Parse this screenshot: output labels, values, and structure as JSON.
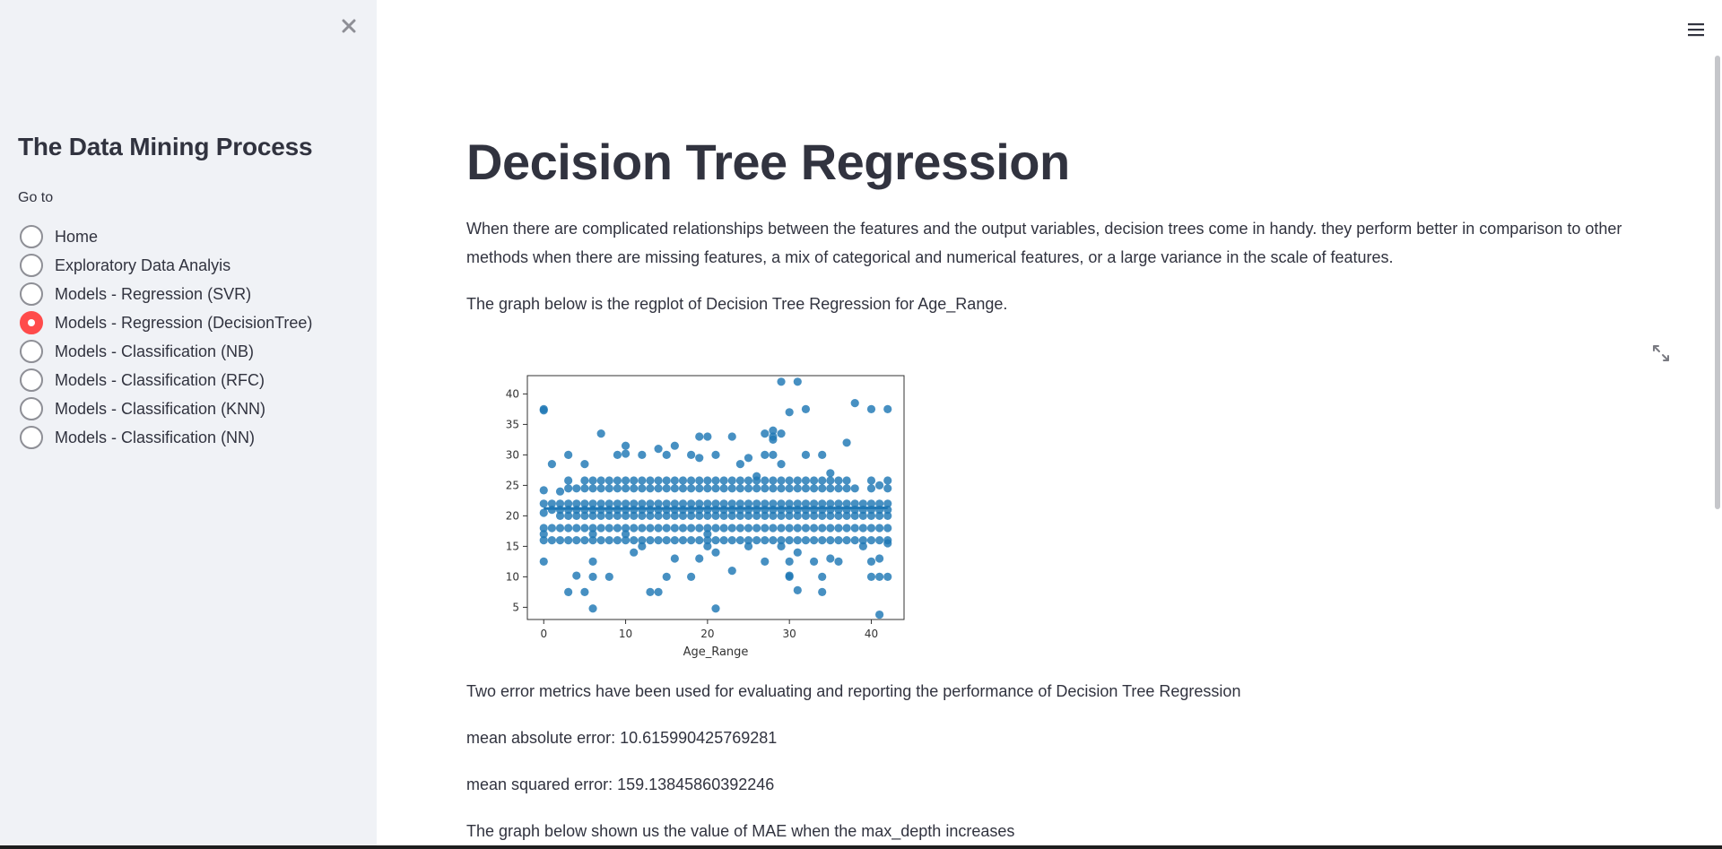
{
  "sidebar": {
    "title": "The Data Mining Process",
    "goto_label": "Go to",
    "items": [
      {
        "label": "Home",
        "selected": false
      },
      {
        "label": "Exploratory Data Analyis",
        "selected": false
      },
      {
        "label": "Models - Regression (SVR)",
        "selected": false
      },
      {
        "label": "Models - Regression (DecisionTree)",
        "selected": true
      },
      {
        "label": "Models - Classification (NB)",
        "selected": false
      },
      {
        "label": "Models - Classification (RFC)",
        "selected": false
      },
      {
        "label": "Models - Classification (KNN)",
        "selected": false
      },
      {
        "label": "Models - Classification (NN)",
        "selected": false
      }
    ],
    "accent_color": "#ff4b4b",
    "close_icon": "close-icon"
  },
  "main": {
    "title": "Decision Tree Regression",
    "intro": "When there are complicated relationships between the features and the output variables, decision trees come in handy. they perform better in comparison to other methods when there are missing features, a mix of categorical and numerical features, or a large variance in the scale of features.",
    "graph_intro": "The graph below is the regplot of Decision Tree Regression for Age_Range.",
    "metrics_intro": "Two error metrics have been used for evaluating and reporting the performance of Decision Tree Regression",
    "mae": "mean absolute error: 10.615990425769281",
    "mse": "mean squared error: 159.13845860392246",
    "mae_graph_intro": "The graph below shown us the value of MAE when the max_depth increases",
    "menu_icon": "hamburger-menu-icon",
    "expand_icon": "fullscreen-expand-icon"
  },
  "chart_data": {
    "type": "scatter",
    "xlabel": "Age_Range",
    "ylabel": "",
    "xlim": [
      -2,
      44
    ],
    "ylim": [
      3,
      43
    ],
    "xticks": [
      0,
      10,
      20,
      30,
      40
    ],
    "yticks": [
      5,
      10,
      15,
      20,
      25,
      30,
      35,
      40
    ],
    "grid": false,
    "point_color": "#1f77b4",
    "regression_line": {
      "x": [
        0,
        42
      ],
      "y": [
        21.2,
        21.3
      ]
    },
    "points": [
      [
        0,
        37.5
      ],
      [
        0,
        37.3
      ],
      [
        0,
        24.2
      ],
      [
        0,
        22
      ],
      [
        0,
        20.5
      ],
      [
        0,
        18
      ],
      [
        0,
        17
      ],
      [
        0,
        16
      ],
      [
        0,
        12.5
      ],
      [
        1,
        28.5
      ],
      [
        1,
        22
      ],
      [
        1,
        21
      ],
      [
        1,
        18
      ],
      [
        1,
        16
      ],
      [
        2,
        24
      ],
      [
        2,
        22
      ],
      [
        2,
        21
      ],
      [
        2,
        20
      ],
      [
        2,
        18
      ],
      [
        2,
        16
      ],
      [
        3,
        30
      ],
      [
        3,
        25.8
      ],
      [
        3,
        24.5
      ],
      [
        3,
        22
      ],
      [
        3,
        21
      ],
      [
        3,
        20
      ],
      [
        3,
        18
      ],
      [
        3,
        16
      ],
      [
        3,
        7.5
      ],
      [
        4,
        24.5
      ],
      [
        4,
        22
      ],
      [
        4,
        21
      ],
      [
        4,
        20
      ],
      [
        4,
        18
      ],
      [
        4,
        16
      ],
      [
        4,
        10.2
      ],
      [
        5,
        28.5
      ],
      [
        5,
        25.8
      ],
      [
        5,
        24.5
      ],
      [
        5,
        22
      ],
      [
        5,
        21
      ],
      [
        5,
        20
      ],
      [
        5,
        18
      ],
      [
        5,
        16
      ],
      [
        5,
        7.5
      ],
      [
        6,
        25.8
      ],
      [
        6,
        24.5
      ],
      [
        6,
        22
      ],
      [
        6,
        21
      ],
      [
        6,
        20
      ],
      [
        6,
        18
      ],
      [
        6,
        17
      ],
      [
        6,
        16
      ],
      [
        6,
        12.5
      ],
      [
        6,
        10
      ],
      [
        6,
        4.8
      ],
      [
        7,
        33.5
      ],
      [
        7,
        25.8
      ],
      [
        7,
        24.5
      ],
      [
        7,
        22
      ],
      [
        7,
        21
      ],
      [
        7,
        20
      ],
      [
        7,
        18
      ],
      [
        7,
        16
      ],
      [
        8,
        25.8
      ],
      [
        8,
        24.5
      ],
      [
        8,
        22
      ],
      [
        8,
        21
      ],
      [
        8,
        20
      ],
      [
        8,
        18
      ],
      [
        8,
        16
      ],
      [
        8,
        10
      ],
      [
        9,
        30
      ],
      [
        9,
        25.8
      ],
      [
        9,
        24.5
      ],
      [
        9,
        22
      ],
      [
        9,
        21
      ],
      [
        9,
        20
      ],
      [
        9,
        18
      ],
      [
        9,
        16
      ],
      [
        10,
        31.5
      ],
      [
        10,
        30.2
      ],
      [
        10,
        25.8
      ],
      [
        10,
        24.5
      ],
      [
        10,
        22
      ],
      [
        10,
        21
      ],
      [
        10,
        20
      ],
      [
        10,
        18
      ],
      [
        10,
        17
      ],
      [
        10,
        16
      ],
      [
        11,
        25.8
      ],
      [
        11,
        24.5
      ],
      [
        11,
        22
      ],
      [
        11,
        21
      ],
      [
        11,
        20
      ],
      [
        11,
        18
      ],
      [
        11,
        16
      ],
      [
        11,
        14
      ],
      [
        12,
        30
      ],
      [
        12,
        25.8
      ],
      [
        12,
        24.5
      ],
      [
        12,
        22
      ],
      [
        12,
        21
      ],
      [
        12,
        20
      ],
      [
        12,
        18
      ],
      [
        12,
        16
      ],
      [
        12,
        15
      ],
      [
        13,
        25.8
      ],
      [
        13,
        24.5
      ],
      [
        13,
        22
      ],
      [
        13,
        21
      ],
      [
        13,
        20
      ],
      [
        13,
        18
      ],
      [
        13,
        16
      ],
      [
        13,
        7.5
      ],
      [
        14,
        31
      ],
      [
        14,
        25.8
      ],
      [
        14,
        24.5
      ],
      [
        14,
        22
      ],
      [
        14,
        21
      ],
      [
        14,
        20
      ],
      [
        14,
        18
      ],
      [
        14,
        16
      ],
      [
        14,
        7.5
      ],
      [
        15,
        30
      ],
      [
        15,
        25.8
      ],
      [
        15,
        24.5
      ],
      [
        15,
        22
      ],
      [
        15,
        21
      ],
      [
        15,
        20
      ],
      [
        15,
        18
      ],
      [
        15,
        16
      ],
      [
        15,
        10
      ],
      [
        16,
        31.5
      ],
      [
        16,
        25.8
      ],
      [
        16,
        24.5
      ],
      [
        16,
        22
      ],
      [
        16,
        21
      ],
      [
        16,
        20
      ],
      [
        16,
        18
      ],
      [
        16,
        16
      ],
      [
        16,
        13
      ],
      [
        17,
        25.8
      ],
      [
        17,
        24.5
      ],
      [
        17,
        22
      ],
      [
        17,
        21
      ],
      [
        17,
        20
      ],
      [
        17,
        18
      ],
      [
        17,
        16
      ],
      [
        18,
        30
      ],
      [
        18,
        25.8
      ],
      [
        18,
        24.5
      ],
      [
        18,
        22
      ],
      [
        18,
        21
      ],
      [
        18,
        20
      ],
      [
        18,
        18
      ],
      [
        18,
        16
      ],
      [
        18,
        10
      ],
      [
        19,
        33
      ],
      [
        19,
        29.5
      ],
      [
        19,
        25.8
      ],
      [
        19,
        24.5
      ],
      [
        19,
        22
      ],
      [
        19,
        21
      ],
      [
        19,
        20
      ],
      [
        19,
        18
      ],
      [
        19,
        16
      ],
      [
        19,
        13
      ],
      [
        20,
        33
      ],
      [
        20,
        25.8
      ],
      [
        20,
        24.5
      ],
      [
        20,
        22
      ],
      [
        20,
        21
      ],
      [
        20,
        20
      ],
      [
        20,
        18
      ],
      [
        20,
        17
      ],
      [
        20,
        16
      ],
      [
        20,
        15
      ],
      [
        21,
        30
      ],
      [
        21,
        25.8
      ],
      [
        21,
        24.5
      ],
      [
        21,
        22
      ],
      [
        21,
        21
      ],
      [
        21,
        20
      ],
      [
        21,
        18
      ],
      [
        21,
        16
      ],
      [
        21,
        14
      ],
      [
        21,
        4.8
      ],
      [
        22,
        25.8
      ],
      [
        22,
        24.5
      ],
      [
        22,
        22
      ],
      [
        22,
        21
      ],
      [
        22,
        20
      ],
      [
        22,
        18
      ],
      [
        22,
        16
      ],
      [
        23,
        33
      ],
      [
        23,
        25.8
      ],
      [
        23,
        24.5
      ],
      [
        23,
        22
      ],
      [
        23,
        21
      ],
      [
        23,
        20
      ],
      [
        23,
        18
      ],
      [
        23,
        16
      ],
      [
        23,
        11
      ],
      [
        24,
        28.5
      ],
      [
        24,
        25.8
      ],
      [
        24,
        24.5
      ],
      [
        24,
        22
      ],
      [
        24,
        21
      ],
      [
        24,
        20
      ],
      [
        24,
        18
      ],
      [
        24,
        16
      ],
      [
        25,
        29.5
      ],
      [
        25,
        25.8
      ],
      [
        25,
        24.5
      ],
      [
        25,
        22
      ],
      [
        25,
        21
      ],
      [
        25,
        20
      ],
      [
        25,
        18
      ],
      [
        25,
        16
      ],
      [
        25,
        15
      ],
      [
        26,
        26.5
      ],
      [
        26,
        25.8
      ],
      [
        26,
        24.5
      ],
      [
        26,
        22
      ],
      [
        26,
        21
      ],
      [
        26,
        20
      ],
      [
        26,
        18
      ],
      [
        26,
        16
      ],
      [
        27,
        33.5
      ],
      [
        27,
        30
      ],
      [
        27,
        25.8
      ],
      [
        27,
        24.5
      ],
      [
        27,
        22
      ],
      [
        27,
        21
      ],
      [
        27,
        20
      ],
      [
        27,
        18
      ],
      [
        27,
        16
      ],
      [
        27,
        12.5
      ],
      [
        28,
        34
      ],
      [
        28,
        33
      ],
      [
        28,
        32.5
      ],
      [
        28,
        30
      ],
      [
        28,
        25.8
      ],
      [
        28,
        24.5
      ],
      [
        28,
        22
      ],
      [
        28,
        21
      ],
      [
        28,
        20
      ],
      [
        28,
        18
      ],
      [
        28,
        16
      ],
      [
        29,
        42
      ],
      [
        29,
        33.5
      ],
      [
        29,
        28.5
      ],
      [
        29,
        25.8
      ],
      [
        29,
        24.5
      ],
      [
        29,
        22
      ],
      [
        29,
        21
      ],
      [
        29,
        20
      ],
      [
        29,
        18
      ],
      [
        29,
        16
      ],
      [
        29,
        15
      ],
      [
        30,
        37
      ],
      [
        30,
        25.8
      ],
      [
        30,
        24.5
      ],
      [
        30,
        22
      ],
      [
        30,
        21
      ],
      [
        30,
        20
      ],
      [
        30,
        18
      ],
      [
        30,
        16
      ],
      [
        30,
        12.5
      ],
      [
        30,
        10.2
      ],
      [
        30,
        10
      ],
      [
        31,
        42
      ],
      [
        31,
        25.8
      ],
      [
        31,
        24.5
      ],
      [
        31,
        22
      ],
      [
        31,
        21
      ],
      [
        31,
        20
      ],
      [
        31,
        18
      ],
      [
        31,
        16
      ],
      [
        31,
        14
      ],
      [
        31,
        7.8
      ],
      [
        32,
        37.5
      ],
      [
        32,
        30
      ],
      [
        32,
        25.8
      ],
      [
        32,
        24.5
      ],
      [
        32,
        22
      ],
      [
        32,
        21
      ],
      [
        32,
        20
      ],
      [
        32,
        18
      ],
      [
        32,
        16
      ],
      [
        33,
        25.8
      ],
      [
        33,
        24.5
      ],
      [
        33,
        22
      ],
      [
        33,
        21
      ],
      [
        33,
        20
      ],
      [
        33,
        18
      ],
      [
        33,
        16
      ],
      [
        33,
        12.5
      ],
      [
        34,
        30
      ],
      [
        34,
        25.8
      ],
      [
        34,
        24.5
      ],
      [
        34,
        22
      ],
      [
        34,
        21
      ],
      [
        34,
        20
      ],
      [
        34,
        18
      ],
      [
        34,
        16
      ],
      [
        34,
        10
      ],
      [
        34,
        7.5
      ],
      [
        35,
        27
      ],
      [
        35,
        25.8
      ],
      [
        35,
        24.5
      ],
      [
        35,
        22
      ],
      [
        35,
        21
      ],
      [
        35,
        20
      ],
      [
        35,
        18
      ],
      [
        35,
        16
      ],
      [
        35,
        13
      ],
      [
        36,
        25.8
      ],
      [
        36,
        24.5
      ],
      [
        36,
        22
      ],
      [
        36,
        21
      ],
      [
        36,
        20
      ],
      [
        36,
        18
      ],
      [
        36,
        16
      ],
      [
        36,
        12.5
      ],
      [
        37,
        32
      ],
      [
        37,
        25.8
      ],
      [
        37,
        24.5
      ],
      [
        37,
        22
      ],
      [
        37,
        21
      ],
      [
        37,
        20
      ],
      [
        37,
        18
      ],
      [
        37,
        16
      ],
      [
        38,
        38.5
      ],
      [
        38,
        24.5
      ],
      [
        38,
        22
      ],
      [
        38,
        21
      ],
      [
        38,
        20
      ],
      [
        38,
        18
      ],
      [
        38,
        16
      ],
      [
        39,
        22
      ],
      [
        39,
        21
      ],
      [
        39,
        20
      ],
      [
        39,
        18
      ],
      [
        39,
        16
      ],
      [
        39,
        15
      ],
      [
        40,
        37.5
      ],
      [
        40,
        25.8
      ],
      [
        40,
        24.5
      ],
      [
        40,
        22
      ],
      [
        40,
        21
      ],
      [
        40,
        20
      ],
      [
        40,
        18
      ],
      [
        40,
        16
      ],
      [
        40,
        12.5
      ],
      [
        40,
        10
      ],
      [
        41,
        25
      ],
      [
        41,
        22
      ],
      [
        41,
        21
      ],
      [
        41,
        20
      ],
      [
        41,
        18
      ],
      [
        41,
        16
      ],
      [
        41,
        13
      ],
      [
        41,
        10
      ],
      [
        41,
        3.8
      ],
      [
        42,
        37.5
      ],
      [
        42,
        25.8
      ],
      [
        42,
        24.5
      ],
      [
        42,
        22
      ],
      [
        42,
        21
      ],
      [
        42,
        20
      ],
      [
        42,
        18
      ],
      [
        42,
        16
      ],
      [
        42,
        15.5
      ],
      [
        42,
        10
      ]
    ]
  }
}
